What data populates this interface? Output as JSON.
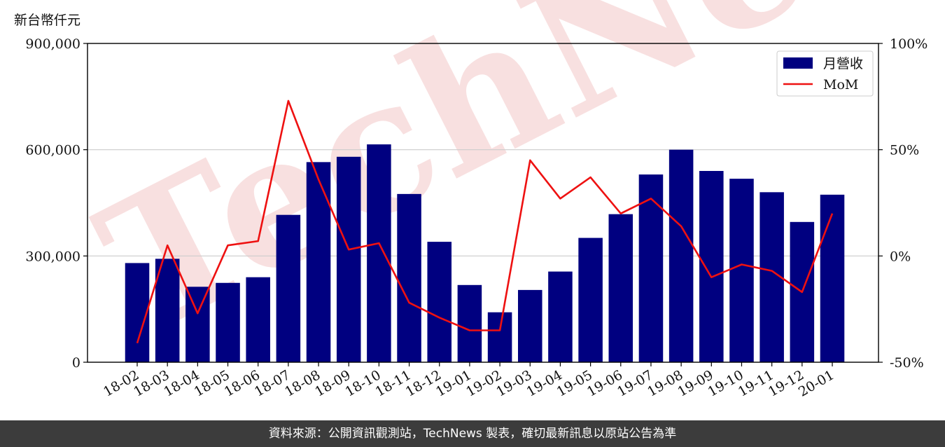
{
  "unit_label": "新台幣仟元",
  "watermark_text": "TechNews",
  "footer_text": "資料來源：公開資訊觀測站，TechNews 製表，確切最新訊息以原站公告為準",
  "colors": {
    "bar": "#000080",
    "line": "#ee1111",
    "grid": "#cccccc",
    "watermark": "#f2c6c6",
    "footer_bg": "#3c3c3c"
  },
  "chart_data": {
    "type": "bar",
    "categories": [
      "18-02",
      "18-03",
      "18-04",
      "18-05",
      "18-06",
      "18-07",
      "18-08",
      "18-09",
      "18-10",
      "18-11",
      "18-12",
      "19-01",
      "19-02",
      "19-03",
      "19-04",
      "19-05",
      "19-06",
      "19-07",
      "19-08",
      "19-09",
      "19-10",
      "19-11",
      "19-12",
      "20-01"
    ],
    "series": [
      {
        "name": "月營收",
        "type": "bar",
        "axis": "left",
        "values": [
          280000,
          292000,
          213000,
          224000,
          240000,
          416000,
          565000,
          580000,
          615000,
          475000,
          340000,
          218000,
          141000,
          204000,
          256000,
          351000,
          418000,
          530000,
          600000,
          540000,
          518000,
          480000,
          396000,
          473000
        ]
      },
      {
        "name": "MoM",
        "type": "line",
        "axis": "right",
        "values": [
          -41,
          5,
          -27,
          5,
          7,
          73,
          36,
          3,
          6,
          -22,
          -29,
          -35,
          -35,
          45,
          27,
          37,
          20,
          27,
          14,
          -10,
          -4,
          -7,
          -17,
          20
        ]
      }
    ],
    "left_axis": {
      "ylim": [
        0,
        900000
      ],
      "ticks": [
        "0",
        "300,000",
        "600,000",
        "900,000"
      ],
      "tick_values": [
        0,
        300000,
        600000,
        900000
      ]
    },
    "right_axis": {
      "ylim": [
        -50,
        100
      ],
      "ticks": [
        "-50%",
        "0%",
        "50%",
        "100%"
      ],
      "tick_values": [
        -50,
        0,
        50,
        100
      ]
    },
    "grid": "horizontal",
    "legend": "top-right"
  }
}
